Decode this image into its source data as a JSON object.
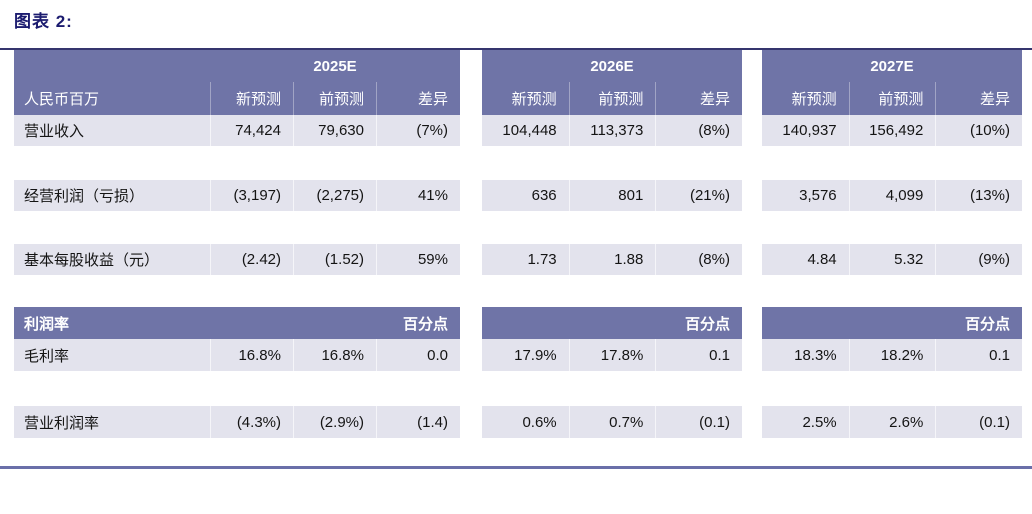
{
  "page": {
    "title": "图表 2:"
  },
  "colors": {
    "header_bg": "#6f74a7",
    "row_bg": "#e3e3ed",
    "title_text": "#1b1b6f",
    "top_rule": "#35356e",
    "bottom_rule": "#6a6fa9",
    "header_text": "#ffffff",
    "data_text": "#141414"
  },
  "header": {
    "unit_label": "人民币百万",
    "years": [
      "2025E",
      "2026E",
      "2027E"
    ],
    "col_headers": [
      "新预测",
      "前预测",
      "差异"
    ]
  },
  "section1": {
    "rows": [
      {
        "label": "营业收入",
        "b1": [
          "74,424",
          "79,630",
          "(7%)"
        ],
        "b2": [
          "104,448",
          "113,373",
          "(8%)"
        ],
        "b3": [
          "140,937",
          "156,492",
          "(10%)"
        ]
      },
      {
        "label": "经营利润（亏损）",
        "b1": [
          "(3,197)",
          "(2,275)",
          "41%"
        ],
        "b2": [
          "636",
          "801",
          "(21%)"
        ],
        "b3": [
          "3,576",
          "4,099",
          "(13%)"
        ]
      },
      {
        "label": "基本每股收益（元）",
        "b1": [
          "(2.42)",
          "(1.52)",
          "59%"
        ],
        "b2": [
          "1.73",
          "1.88",
          "(8%)"
        ],
        "b3": [
          "4.84",
          "5.32",
          "(9%)"
        ]
      }
    ]
  },
  "section2": {
    "header_label": "利润率",
    "unit_header": "百分点",
    "rows": [
      {
        "label": "毛利率",
        "b1": [
          "16.8%",
          "16.8%",
          "0.0"
        ],
        "b2": [
          "17.9%",
          "17.8%",
          "0.1"
        ],
        "b3": [
          "18.3%",
          "18.2%",
          "0.1"
        ]
      },
      {
        "label": "营业利润率",
        "b1": [
          "(4.3%)",
          "(2.9%)",
          "(1.4)"
        ],
        "b2": [
          "0.6%",
          "0.7%",
          "(0.1)"
        ],
        "b3": [
          "2.5%",
          "2.6%",
          "(0.1)"
        ]
      }
    ]
  }
}
